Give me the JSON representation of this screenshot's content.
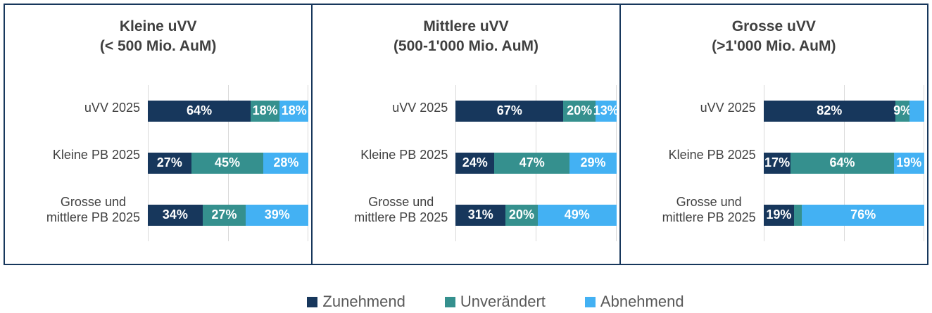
{
  "colors": {
    "zunehmend": "#17375C",
    "unveraendert": "#35908E",
    "abnehmend": "#43B1F3",
    "panel_border": "#17375C",
    "gridline": "#D9D9D9",
    "title_text": "#404040",
    "category_text": "#404040",
    "value_text": "#FFFFFF",
    "legend_text": "#595959"
  },
  "legend": {
    "items": [
      {
        "label": "Zunehmend",
        "color": "#17375C"
      },
      {
        "label": "Unverändert",
        "color": "#35908E"
      },
      {
        "label": "Abnehmend",
        "color": "#43B1F3"
      }
    ]
  },
  "chart_data": [
    {
      "type": "bar",
      "orientation": "horizontal",
      "stacked": true,
      "title": "Kleine uVV (< 500 Mio. AuM)",
      "title_lines": [
        "Kleine uVV",
        "(< 500 Mio. AuM)"
      ],
      "categories": [
        "uVV 2025",
        "Kleine PB 2025",
        "Grosse und mittlere PB 2025"
      ],
      "category_lines": [
        [
          "uVV 2025"
        ],
        [
          "Kleine PB 2025"
        ],
        [
          "Grosse und",
          "mittlere PB 2025"
        ]
      ],
      "series": [
        {
          "name": "Zunehmend",
          "color": "#17375C",
          "values": [
            64,
            27,
            34
          ]
        },
        {
          "name": "Unverändert",
          "color": "#35908E",
          "values": [
            18,
            45,
            27
          ]
        },
        {
          "name": "Abnehmend",
          "color": "#43B1F3",
          "values": [
            18,
            28,
            39
          ]
        }
      ],
      "data_labels": [
        [
          "64%",
          "18%",
          "18%"
        ],
        [
          "27%",
          "45%",
          "28%"
        ],
        [
          "34%",
          "27%",
          "39%"
        ]
      ],
      "xlim": [
        0,
        100
      ],
      "unit": "%",
      "gridlines_pct": [
        0,
        50,
        100
      ],
      "legend_position": "bottom-shared"
    },
    {
      "type": "bar",
      "orientation": "horizontal",
      "stacked": true,
      "title": "Mittlere uVV (500-1'000 Mio. AuM)",
      "title_lines": [
        "Mittlere uVV",
        "(500-1'000 Mio. AuM)"
      ],
      "categories": [
        "uVV 2025",
        "Kleine PB 2025",
        "Grosse und mittlere PB 2025"
      ],
      "category_lines": [
        [
          "uVV 2025"
        ],
        [
          "Kleine PB 2025"
        ],
        [
          "Grosse und",
          "mittlere PB 2025"
        ]
      ],
      "series": [
        {
          "name": "Zunehmend",
          "color": "#17375C",
          "values": [
            67,
            24,
            31
          ]
        },
        {
          "name": "Unverändert",
          "color": "#35908E",
          "values": [
            20,
            47,
            20
          ]
        },
        {
          "name": "Abnehmend",
          "color": "#43B1F3",
          "values": [
            13,
            29,
            49
          ]
        }
      ],
      "data_labels": [
        [
          "67%",
          "20%",
          "13%"
        ],
        [
          "24%",
          "47%",
          "29%"
        ],
        [
          "31%",
          "20%",
          "49%"
        ]
      ],
      "xlim": [
        0,
        100
      ],
      "unit": "%",
      "gridlines_pct": [
        0,
        50,
        100
      ],
      "legend_position": "bottom-shared"
    },
    {
      "type": "bar",
      "orientation": "horizontal",
      "stacked": true,
      "title": "Grosse uVV (>1'000 Mio. AuM)",
      "title_lines": [
        "Grosse uVV",
        "(>1'000 Mio. AuM)"
      ],
      "categories": [
        "uVV 2025",
        "Kleine PB 2025",
        "Grosse und mittlere PB 2025"
      ],
      "category_lines": [
        [
          "uVV 2025"
        ],
        [
          "Kleine PB 2025"
        ],
        [
          "Grosse und",
          "mittlere PB 2025"
        ]
      ],
      "series": [
        {
          "name": "Zunehmend",
          "color": "#17375C",
          "values": [
            82,
            17,
            19
          ]
        },
        {
          "name": "Unverändert",
          "color": "#35908E",
          "values": [
            9,
            64,
            5
          ]
        },
        {
          "name": "Abnehmend",
          "color": "#43B1F3",
          "values": [
            9,
            19,
            76
          ]
        }
      ],
      "data_labels": [
        [
          "82%",
          "9%",
          ""
        ],
        [
          "17%",
          "64%",
          "19%"
        ],
        [
          "19%",
          "",
          "76%"
        ]
      ],
      "xlim": [
        0,
        100
      ],
      "unit": "%",
      "gridlines_pct": [
        0,
        50,
        100
      ],
      "legend_position": "bottom-shared"
    }
  ]
}
